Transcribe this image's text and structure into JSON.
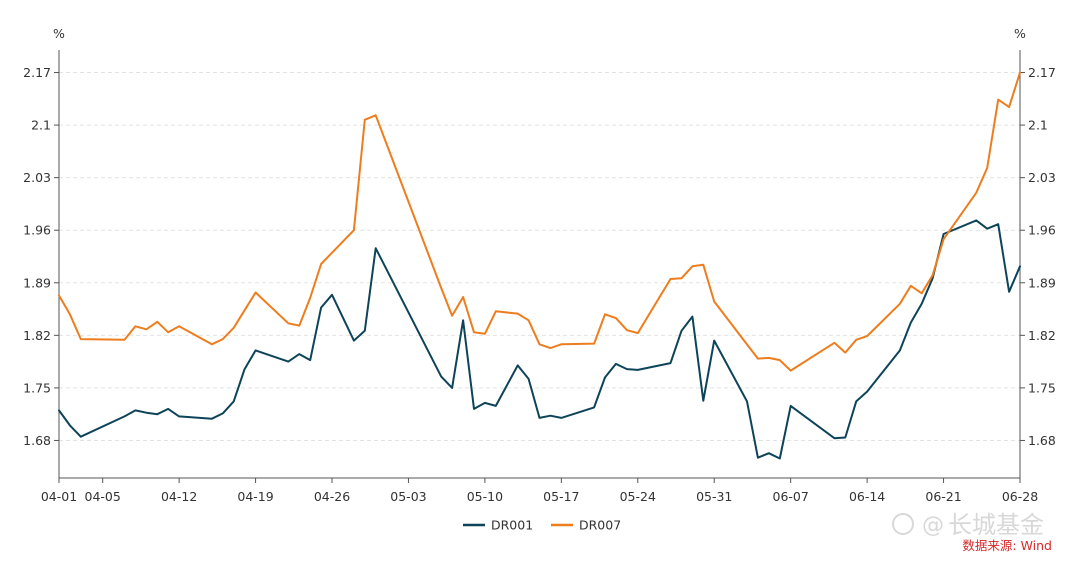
{
  "chart_data": {
    "type": "line",
    "y_unit_left": "%",
    "y_unit_right": "%",
    "ylim": [
      1.63,
      2.2
    ],
    "yticks": [
      "1.68",
      "1.75",
      "1.82",
      "1.89",
      "1.96",
      "2.03",
      "2.1",
      "2.17"
    ],
    "xlim_days": [
      0,
      88
    ],
    "xticks": [
      {
        "label": "04-01",
        "day": 0
      },
      {
        "label": "04-05",
        "day": 4
      },
      {
        "label": "04-12",
        "day": 11
      },
      {
        "label": "04-19",
        "day": 18
      },
      {
        "label": "04-26",
        "day": 25
      },
      {
        "label": "05-03",
        "day": 32
      },
      {
        "label": "05-10",
        "day": 39
      },
      {
        "label": "05-17",
        "day": 46
      },
      {
        "label": "05-24",
        "day": 53
      },
      {
        "label": "05-31",
        "day": 60
      },
      {
        "label": "06-07",
        "day": 67
      },
      {
        "label": "06-14",
        "day": 74
      },
      {
        "label": "06-21",
        "day": 81
      },
      {
        "label": "06-28",
        "day": 88
      }
    ],
    "series": [
      {
        "name": "DR001",
        "color": "#0e4459",
        "points": [
          [
            0,
            1.72
          ],
          [
            1,
            1.7
          ],
          [
            2,
            1.685
          ],
          [
            6,
            1.712
          ],
          [
            7,
            1.72
          ],
          [
            8,
            1.717
          ],
          [
            9,
            1.715
          ],
          [
            10,
            1.722
          ],
          [
            11,
            1.712
          ],
          [
            14,
            1.709
          ],
          [
            15,
            1.716
          ],
          [
            16,
            1.732
          ],
          [
            17,
            1.775
          ],
          [
            18,
            1.8
          ],
          [
            21,
            1.785
          ],
          [
            22,
            1.795
          ],
          [
            23,
            1.787
          ],
          [
            24,
            1.857
          ],
          [
            25,
            1.874
          ],
          [
            27,
            1.813
          ],
          [
            28,
            1.826
          ],
          [
            29,
            1.936
          ],
          [
            35,
            1.765
          ],
          [
            36,
            1.75
          ],
          [
            37,
            1.84
          ],
          [
            38,
            1.722
          ],
          [
            39,
            1.73
          ],
          [
            40,
            1.726
          ],
          [
            42,
            1.78
          ],
          [
            43,
            1.762
          ],
          [
            44,
            1.71
          ],
          [
            45,
            1.713
          ],
          [
            46,
            1.71
          ],
          [
            49,
            1.724
          ],
          [
            50,
            1.764
          ],
          [
            51,
            1.782
          ],
          [
            52,
            1.775
          ],
          [
            53,
            1.774
          ],
          [
            56,
            1.783
          ],
          [
            57,
            1.826
          ],
          [
            58,
            1.845
          ],
          [
            59,
            1.733
          ],
          [
            60,
            1.813
          ],
          [
            63,
            1.732
          ],
          [
            64,
            1.657
          ],
          [
            65,
            1.663
          ],
          [
            66,
            1.656
          ],
          [
            67,
            1.726
          ],
          [
            71,
            1.683
          ],
          [
            72,
            1.684
          ],
          [
            73,
            1.732
          ],
          [
            74,
            1.745
          ],
          [
            77,
            1.8
          ],
          [
            78,
            1.837
          ],
          [
            79,
            1.862
          ],
          [
            80,
            1.896
          ],
          [
            81,
            1.955
          ],
          [
            84,
            1.973
          ],
          [
            85,
            1.962
          ],
          [
            86,
            1.968
          ],
          [
            87,
            1.878
          ],
          [
            88,
            1.912
          ]
        ]
      },
      {
        "name": "DR007",
        "color": "#ee7d1e",
        "points": [
          [
            0,
            1.873
          ],
          [
            1,
            1.848
          ],
          [
            2,
            1.815
          ],
          [
            6,
            1.814
          ],
          [
            7,
            1.832
          ],
          [
            8,
            1.828
          ],
          [
            9,
            1.838
          ],
          [
            10,
            1.824
          ],
          [
            11,
            1.832
          ],
          [
            14,
            1.808
          ],
          [
            15,
            1.815
          ],
          [
            16,
            1.83
          ],
          [
            18,
            1.877
          ],
          [
            21,
            1.836
          ],
          [
            22,
            1.833
          ],
          [
            23,
            1.87
          ],
          [
            24,
            1.915
          ],
          [
            27,
            1.96
          ],
          [
            28,
            2.107
          ],
          [
            29,
            2.113
          ],
          [
            35,
            1.883
          ],
          [
            36,
            1.846
          ],
          [
            37,
            1.871
          ],
          [
            38,
            1.824
          ],
          [
            39,
            1.822
          ],
          [
            40,
            1.852
          ],
          [
            42,
            1.849
          ],
          [
            43,
            1.84
          ],
          [
            44,
            1.808
          ],
          [
            45,
            1.803
          ],
          [
            46,
            1.808
          ],
          [
            49,
            1.809
          ],
          [
            50,
            1.848
          ],
          [
            51,
            1.843
          ],
          [
            52,
            1.827
          ],
          [
            53,
            1.823
          ],
          [
            56,
            1.895
          ],
          [
            57,
            1.896
          ],
          [
            58,
            1.912
          ],
          [
            59,
            1.914
          ],
          [
            60,
            1.865
          ],
          [
            64,
            1.789
          ],
          [
            65,
            1.79
          ],
          [
            66,
            1.787
          ],
          [
            67,
            1.773
          ],
          [
            71,
            1.81
          ],
          [
            72,
            1.797
          ],
          [
            73,
            1.814
          ],
          [
            74,
            1.819
          ],
          [
            77,
            1.862
          ],
          [
            78,
            1.886
          ],
          [
            79,
            1.876
          ],
          [
            80,
            1.9
          ],
          [
            81,
            1.948
          ],
          [
            84,
            2.01
          ],
          [
            85,
            2.043
          ],
          [
            86,
            2.134
          ],
          [
            87,
            2.124
          ],
          [
            88,
            2.17
          ]
        ]
      }
    ],
    "legend": {
      "position": "bottom-center"
    },
    "grid": true
  },
  "watermark": {
    "symbol": "@",
    "brand": "长城基金",
    "source": "数据来源: Wind"
  }
}
